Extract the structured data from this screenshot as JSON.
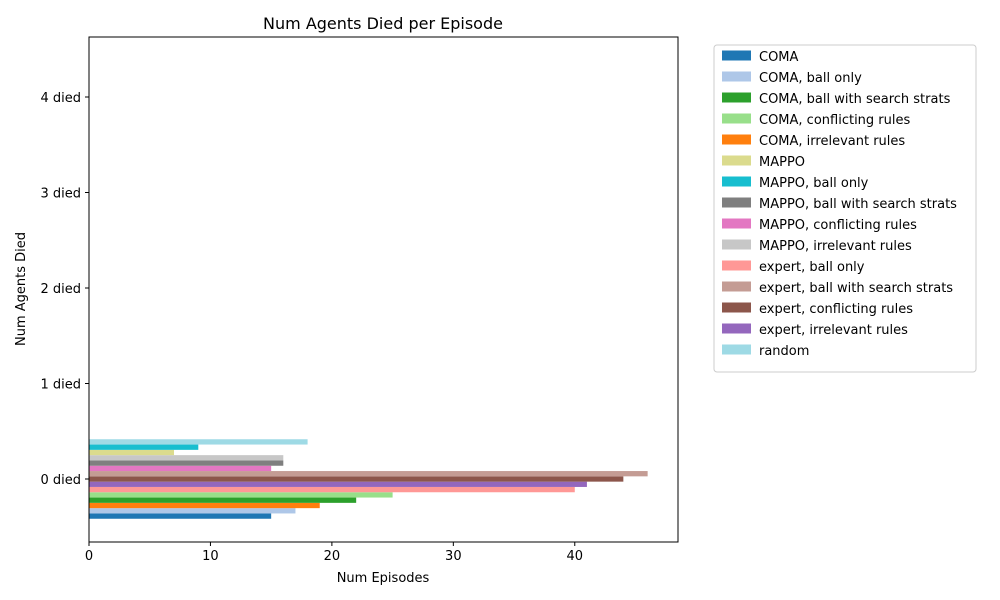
{
  "chart_data": {
    "type": "bar",
    "orientation": "horizontal",
    "title": "Num Agents Died per Episode",
    "xlabel": "Num Episodes",
    "ylabel": "Num Agents Died",
    "categories": [
      "0 died",
      "1 died",
      "2 died",
      "3 died",
      "4 died"
    ],
    "xlim": [
      0,
      48.5
    ],
    "xticks": [
      0,
      10,
      20,
      30,
      40
    ],
    "grid": false,
    "legend_position": "outside-right",
    "series": [
      {
        "name": "COMA",
        "color": "#1f77b4",
        "values": [
          15,
          0,
          0,
          0,
          0
        ]
      },
      {
        "name": "COMA, ball only",
        "color": "#aec7e8",
        "values": [
          17,
          0,
          0,
          0,
          0
        ]
      },
      {
        "name": "COMA, ball with search strats",
        "color": "#2ca02c",
        "values": [
          22,
          0,
          0,
          0,
          0
        ]
      },
      {
        "name": "COMA, conflicting rules",
        "color": "#98df8a",
        "values": [
          25,
          0,
          0,
          0,
          0
        ]
      },
      {
        "name": "COMA, irrelevant rules",
        "color": "#ff7f0e",
        "values": [
          19,
          0,
          0,
          0,
          0
        ]
      },
      {
        "name": "MAPPO",
        "color": "#dbdb8d",
        "values": [
          7,
          0,
          0,
          0,
          0
        ]
      },
      {
        "name": "MAPPO, ball only",
        "color": "#17becf",
        "values": [
          9,
          0,
          0,
          0,
          0
        ]
      },
      {
        "name": "MAPPO, ball with search strats",
        "color": "#7f7f7f",
        "values": [
          16,
          0,
          0,
          0,
          0
        ]
      },
      {
        "name": "MAPPO, conflicting rules",
        "color": "#e377c2",
        "values": [
          15,
          0,
          0,
          0,
          0
        ]
      },
      {
        "name": "MAPPO, irrelevant rules",
        "color": "#c7c7c7",
        "values": [
          16,
          0,
          0,
          0,
          0
        ]
      },
      {
        "name": "expert, ball only",
        "color": "#ff9896",
        "values": [
          40,
          0,
          0,
          0,
          0
        ]
      },
      {
        "name": "expert, ball with search strats",
        "color": "#c49c94",
        "values": [
          46,
          0,
          0,
          0,
          0
        ]
      },
      {
        "name": "expert, conflicting rules",
        "color": "#8c564b",
        "values": [
          44,
          0,
          0,
          0,
          0
        ]
      },
      {
        "name": "expert, irrelevant rules",
        "color": "#9467bd",
        "values": [
          41,
          0,
          0,
          0,
          0
        ]
      },
      {
        "name": "random",
        "color": "#9edae5",
        "values": [
          18,
          0,
          0,
          0,
          0
        ]
      }
    ],
    "bar_order_bottom_to_top": [
      "COMA",
      "COMA, ball only",
      "COMA, irrelevant rules",
      "COMA, ball with search strats",
      "COMA, conflicting rules",
      "expert, ball only",
      "expert, irrelevant rules",
      "expert, conflicting rules",
      "expert, ball with search strats",
      "MAPPO, conflicting rules",
      "MAPPO, ball with search strats",
      "MAPPO, irrelevant rules",
      "MAPPO",
      "MAPPO, ball only",
      "random"
    ]
  }
}
